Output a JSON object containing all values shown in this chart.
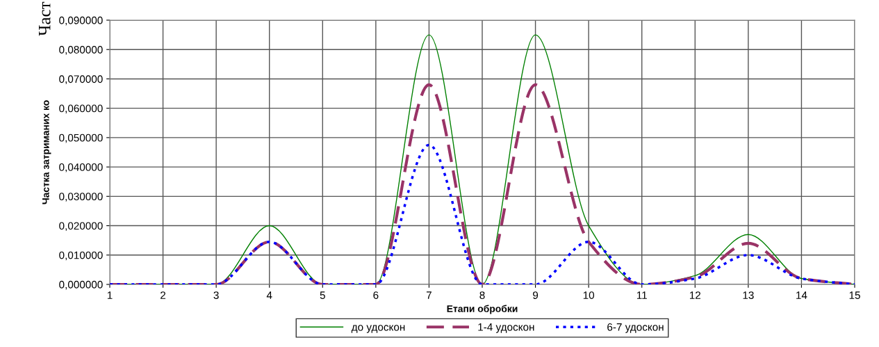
{
  "chart_data": {
    "type": "line",
    "xlabel": "Етапи обробки",
    "ylabel": "Частка затриманих ко",
    "annotations": [
      "Част"
    ],
    "x": [
      1,
      2,
      3,
      4,
      5,
      6,
      7,
      8,
      9,
      10,
      11,
      12,
      13,
      14,
      15
    ],
    "series": [
      {
        "name": "до удоскон",
        "color": "#008000",
        "line_style": "solid",
        "values": [
          0,
          0,
          0,
          0.02,
          0,
          0,
          0.085,
          0,
          0.085,
          0.02,
          0,
          0.003,
          0.017,
          0.002,
          0
        ]
      },
      {
        "name": "1-4 удоскон",
        "color": "#993366",
        "line_style": "dashed",
        "values": [
          0,
          0,
          0,
          0.0145,
          0,
          0,
          0.068,
          0,
          0.068,
          0.0145,
          0,
          0.0025,
          0.014,
          0.002,
          0
        ]
      },
      {
        "name": "6-7 удоскон",
        "color": "#0000ff",
        "line_style": "dotted",
        "values": [
          0,
          0,
          0,
          0.0145,
          0,
          0,
          0.0475,
          0,
          0,
          0.0145,
          0,
          0.002,
          0.01,
          0.002,
          0
        ]
      }
    ],
    "xlim": [
      1,
      15
    ],
    "xticks": [
      1,
      2,
      3,
      4,
      5,
      6,
      7,
      8,
      9,
      10,
      11,
      12,
      13,
      14,
      15
    ],
    "ylim": [
      0,
      0.09
    ],
    "yticks": [
      {
        "value": 0,
        "label": "0,000000"
      },
      {
        "value": 0.01,
        "label": "0,010000"
      },
      {
        "value": 0.02,
        "label": "0,020000"
      },
      {
        "value": 0.03,
        "label": "0,030000"
      },
      {
        "value": 0.04,
        "label": "0,040000"
      },
      {
        "value": 0.05,
        "label": "0,050000"
      },
      {
        "value": 0.06,
        "label": "0,060000"
      },
      {
        "value": 0.07,
        "label": "0,070000"
      },
      {
        "value": 0.08,
        "label": "0,080000"
      },
      {
        "value": 0.09,
        "label": "0,090000"
      }
    ],
    "grid": true,
    "legend": "bottom",
    "marker": "none"
  }
}
